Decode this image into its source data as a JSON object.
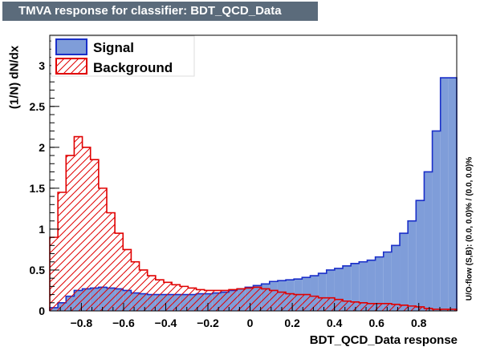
{
  "chart_data": {
    "type": "histogram",
    "title": "TMVA response for classifier: BDT_QCD_Data",
    "xlabel": "BDT_QCD_Data response",
    "ylabel": "(1/N) dN/dx",
    "side_note": "U/O-flow (S,B): (0.0, 0.0)% / (0.0, 0.0)%",
    "xlim": [
      -0.95,
      0.98
    ],
    "ylim": [
      0,
      3.37
    ],
    "bin_edges_start": -0.95,
    "bin_width": 0.0386,
    "xticks": [
      -0.8,
      -0.6,
      -0.4,
      -0.2,
      0,
      0.2,
      0.4,
      0.6,
      0.8
    ],
    "xtick_labels": [
      "−0.8",
      "−0.6",
      "−0.4",
      "−0.2",
      "0",
      "0.2",
      "0.4",
      "0.6",
      "0.8"
    ],
    "yticks": [
      0,
      0.5,
      1,
      1.5,
      2,
      2.5,
      3
    ],
    "ytick_labels": [
      "0",
      "0.5",
      "1",
      "1.5",
      "2",
      "2.5",
      "3"
    ],
    "legend_position": "top-left",
    "series": [
      {
        "name": "Signal",
        "color": "#1a2fc9",
        "fill": "#7f9dd9",
        "style": "filled",
        "values": [
          0.04,
          0.1,
          0.18,
          0.25,
          0.27,
          0.28,
          0.29,
          0.28,
          0.27,
          0.25,
          0.22,
          0.21,
          0.2,
          0.2,
          0.2,
          0.2,
          0.2,
          0.2,
          0.21,
          0.21,
          0.22,
          0.23,
          0.25,
          0.27,
          0.29,
          0.31,
          0.33,
          0.36,
          0.37,
          0.38,
          0.39,
          0.41,
          0.43,
          0.46,
          0.5,
          0.52,
          0.55,
          0.58,
          0.6,
          0.62,
          0.66,
          0.72,
          0.8,
          0.95,
          1.1,
          1.35,
          1.7,
          2.2,
          2.85,
          2.85
        ]
      },
      {
        "name": "Background",
        "color": "#e00000",
        "fill": "none",
        "style": "hatched",
        "values": [
          0.9,
          1.45,
          1.9,
          2.13,
          2.0,
          1.85,
          1.5,
          1.2,
          0.95,
          0.75,
          0.6,
          0.5,
          0.43,
          0.38,
          0.35,
          0.32,
          0.3,
          0.28,
          0.26,
          0.25,
          0.25,
          0.25,
          0.26,
          0.27,
          0.28,
          0.29,
          0.27,
          0.25,
          0.23,
          0.21,
          0.2,
          0.2,
          0.18,
          0.16,
          0.16,
          0.14,
          0.12,
          0.11,
          0.1,
          0.09,
          0.09,
          0.09,
          0.08,
          0.07,
          0.06,
          0.05,
          0.03,
          0.02,
          0.02,
          0.02
        ]
      }
    ]
  }
}
